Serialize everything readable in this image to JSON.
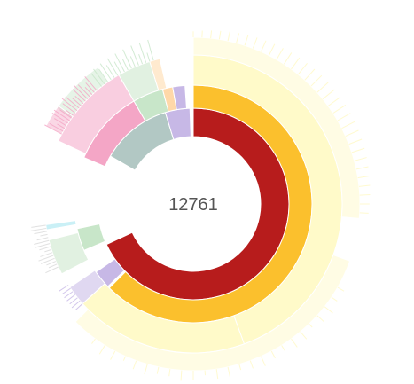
{
  "chart_data": {
    "type": "sunburst",
    "center_value": "12761",
    "colors": {
      "red": "#B71C1C",
      "orange": "#FBC02D",
      "pale_yellow": "#FFF59D",
      "very_pale_yellow": "#FFF9C4",
      "gray_teal": "#B2C8C4",
      "light_green": "#C8E6C9",
      "pink": "#F4A6C6",
      "lavender": "#C7B8E6",
      "peach": "#FFD8A8",
      "cyan": "#9EE3EE",
      "light_gray": "#D9D9D9"
    },
    "rings": [
      {
        "level": 1,
        "segments": [
          {
            "color": "red",
            "start_deg": 0,
            "end_deg": 245
          },
          {
            "color": "gray_teal",
            "start_deg": 300,
            "end_deg": 343
          },
          {
            "color": "lavender",
            "start_deg": 343,
            "end_deg": 358
          }
        ]
      },
      {
        "level": 2,
        "segments": [
          {
            "color": "orange",
            "start_deg": 0,
            "end_deg": 225
          },
          {
            "color": "lavender",
            "start_deg": 226,
            "end_deg": 235
          },
          {
            "color": "light_green",
            "start_deg": 247,
            "end_deg": 258
          },
          {
            "color": "pink",
            "start_deg": 293,
            "end_deg": 330
          },
          {
            "color": "light_green",
            "start_deg": 330,
            "end_deg": 345
          },
          {
            "color": "peach",
            "start_deg": 345,
            "end_deg": 350
          },
          {
            "color": "lavender",
            "start_deg": 350,
            "end_deg": 356
          }
        ]
      },
      {
        "level": 3,
        "segments": [
          {
            "color": "pale_yellow",
            "start_deg": 0,
            "end_deg": 160
          },
          {
            "color": "pale_yellow",
            "start_deg": 160,
            "end_deg": 228
          },
          {
            "color": "lavender",
            "start_deg": 228,
            "end_deg": 236
          },
          {
            "color": "light_green",
            "start_deg": 242,
            "end_deg": 256
          },
          {
            "color": "cyan",
            "start_deg": 260,
            "end_deg": 262
          },
          {
            "color": "pink",
            "start_deg": 295,
            "end_deg": 330
          },
          {
            "color": "light_green",
            "start_deg": 330,
            "end_deg": 343
          },
          {
            "color": "peach",
            "start_deg": 343,
            "end_deg": 347
          }
        ]
      },
      {
        "level": 4,
        "segments": [
          {
            "color": "very_pale_yellow",
            "start_deg": 0,
            "end_deg": 95
          },
          {
            "color": "very_pale_yellow",
            "start_deg": 110,
            "end_deg": 225
          },
          {
            "color": "light_green",
            "start_deg": 305,
            "end_deg": 325
          },
          {
            "color": "pink",
            "start_deg": 298,
            "end_deg": 306
          }
        ]
      }
    ]
  }
}
